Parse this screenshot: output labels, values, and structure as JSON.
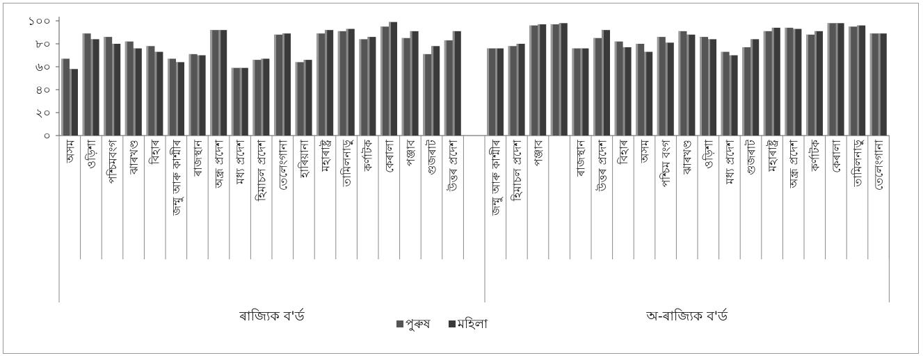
{
  "chart_data": {
    "type": "bar",
    "title": "",
    "xlabel": "",
    "ylabel": "",
    "ylim": [
      0,
      100
    ],
    "yticks": [
      {
        "value": 0,
        "label": "০"
      },
      {
        "value": 20,
        "label": "২০"
      },
      {
        "value": 40,
        "label": "৪০"
      },
      {
        "value": 60,
        "label": "৬০"
      },
      {
        "value": 80,
        "label": "৮০"
      },
      {
        "value": 100,
        "label": "১০০"
      }
    ],
    "grid": false,
    "legend_position": "bottom-center",
    "colors": {
      "male": "#555555",
      "female": "#3a3a3a"
    },
    "series_names": [
      "পুৰুষ",
      "মহিলা"
    ],
    "groups": [
      {
        "name": "ৰাজ্যিক ব'ৰ্ড",
        "categories": [
          {
            "label": "অসম",
            "male": 67,
            "female": 58
          },
          {
            "label": "ওড়িশা",
            "male": 89,
            "female": 84
          },
          {
            "label": "পশ্চিমবংগ",
            "male": 86,
            "female": 80
          },
          {
            "label": "ঝাৰখণ্ড",
            "male": 82,
            "female": 76
          },
          {
            "label": "বিহাৰ",
            "male": 78,
            "female": 73
          },
          {
            "label": "জম্মু আৰু কাশ্মীৰ",
            "male": 67,
            "female": 64
          },
          {
            "label": "ৰাজস্থান",
            "male": 71,
            "female": 70
          },
          {
            "label": "অন্ধ্ৰ প্ৰদেশ",
            "male": 92,
            "female": 92
          },
          {
            "label": "মধ্য প্ৰদেশ",
            "male": 59,
            "female": 59
          },
          {
            "label": "হিমাচল প্ৰদেশ",
            "male": 66,
            "female": 67
          },
          {
            "label": "তেলেংগানা",
            "male": 88,
            "female": 89
          },
          {
            "label": "হাৰিয়ানা",
            "male": 64,
            "female": 66
          },
          {
            "label": "মহাৰাষ্ট্ৰ",
            "male": 89,
            "female": 92
          },
          {
            "label": "তামিলনাড়ু",
            "male": 91,
            "female": 93
          },
          {
            "label": "কৰ্ণাটক",
            "male": 84,
            "female": 86
          },
          {
            "label": "কেৰালা",
            "male": 95,
            "female": 99
          },
          {
            "label": "পঞ্জাব",
            "male": 85,
            "female": 91
          },
          {
            "label": "গুজৰাট",
            "male": 71,
            "female": 78
          },
          {
            "label": "উত্তৰ প্ৰদেশ",
            "male": 83,
            "female": 91
          },
          {
            "label": "",
            "male": null,
            "female": null
          }
        ]
      },
      {
        "name": "অ-ৰাজ্যিক ব'ৰ্ড",
        "categories": [
          {
            "label": "জম্মু আৰু কাশ্মীৰ",
            "male": 76,
            "female": 76
          },
          {
            "label": "হিমাচল প্ৰদেশ",
            "male": 78,
            "female": 80
          },
          {
            "label": "পঞ্জাব",
            "male": 96,
            "female": 97
          },
          {
            "label": "",
            "male": 97,
            "female": 98
          },
          {
            "label": "ৰাজস্থান",
            "male": 76,
            "female": 76
          },
          {
            "label": "উত্তৰ প্ৰদেশ",
            "male": 85,
            "female": 92
          },
          {
            "label": "বিহাৰ",
            "male": 82,
            "female": 77
          },
          {
            "label": "অসম",
            "male": 80,
            "female": 73
          },
          {
            "label": "পশ্চিম বংগ",
            "male": 86,
            "female": 81
          },
          {
            "label": "ঝাৰখণ্ড",
            "male": 91,
            "female": 88
          },
          {
            "label": "ওড়িশা",
            "male": 86,
            "female": 84
          },
          {
            "label": "মধ্য প্ৰদেশ",
            "male": 73,
            "female": 70
          },
          {
            "label": "গুজৰাট",
            "male": 77,
            "female": 84
          },
          {
            "label": "মহাৰাষ্ট্ৰ",
            "male": 91,
            "female": 94
          },
          {
            "label": "অন্ধ্ৰ প্ৰদেশ",
            "male": 94,
            "female": 93
          },
          {
            "label": "কৰ্ণাটক",
            "male": 88,
            "female": 91
          },
          {
            "label": "কেৰালা",
            "male": 98,
            "female": 98
          },
          {
            "label": "তামিলনাড়ু",
            "male": 95,
            "female": 96
          },
          {
            "label": "তেলেংগানা",
            "male": 89,
            "female": 89
          }
        ]
      }
    ]
  }
}
